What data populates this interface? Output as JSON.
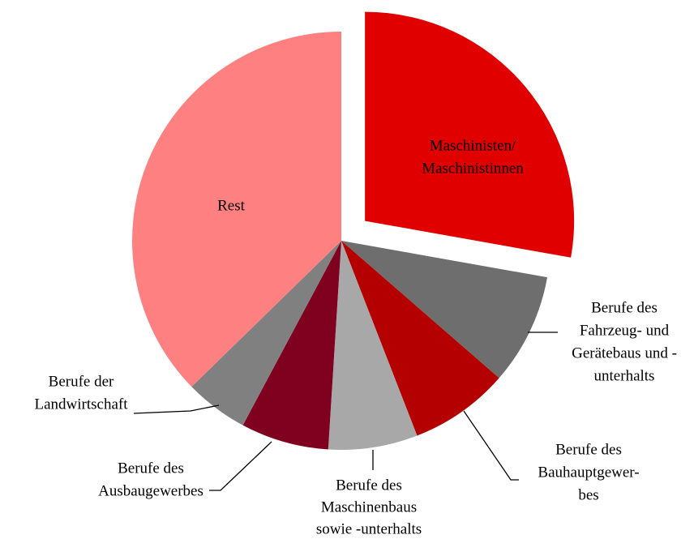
{
  "chart_data": {
    "type": "pie",
    "categories": [
      [
        "Maschinisten/",
        "Maschinistinnen"
      ],
      [
        "Berufe des",
        "Fahrzeug- und",
        "Gerätebaus und -",
        "unterhalts"
      ],
      [
        "Berufe des",
        "Bauhauptgewer-",
        "bes"
      ],
      [
        "Berufe des",
        "Maschinenbaus",
        "sowie -unterhalts"
      ],
      [
        "Berufe des",
        "Ausbaugewerbes"
      ],
      [
        "Berufe der",
        "Landwirtschaft"
      ],
      [
        "Rest"
      ]
    ],
    "values": [
      27.8,
      8.6,
      7.7,
      6.9,
      6.8,
      4.9,
      37.3
    ],
    "colors": [
      "#e00000",
      "#6e6e6e",
      "#b40000",
      "#a8a8a8",
      "#800020",
      "#808080",
      "#ff8080"
    ]
  }
}
